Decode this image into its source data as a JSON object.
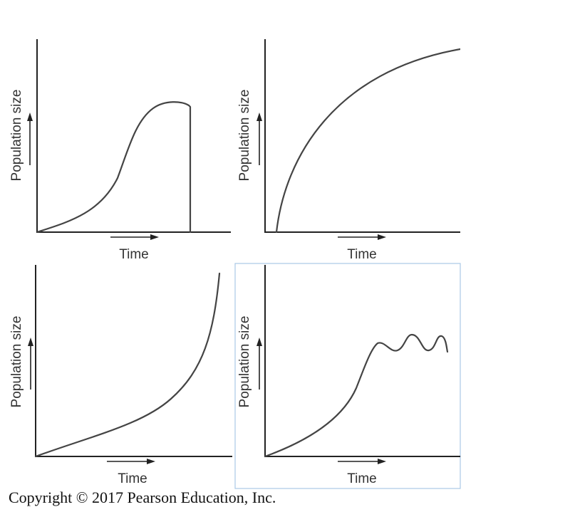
{
  "chart_data": [
    {
      "type": "line",
      "xlabel": "Time",
      "ylabel": "Population size",
      "shape": "logistic-growth-then-crash"
    },
    {
      "type": "line",
      "xlabel": "Time",
      "ylabel": "Population size",
      "shape": "concave-saturating"
    },
    {
      "type": "line",
      "xlabel": "Time",
      "ylabel": "Population size",
      "shape": "exponential"
    },
    {
      "type": "line",
      "xlabel": "Time",
      "ylabel": "Population size",
      "shape": "logistic-with-oscillation"
    }
  ],
  "copyright": "Copyright © 2017 Pearson Education, Inc."
}
